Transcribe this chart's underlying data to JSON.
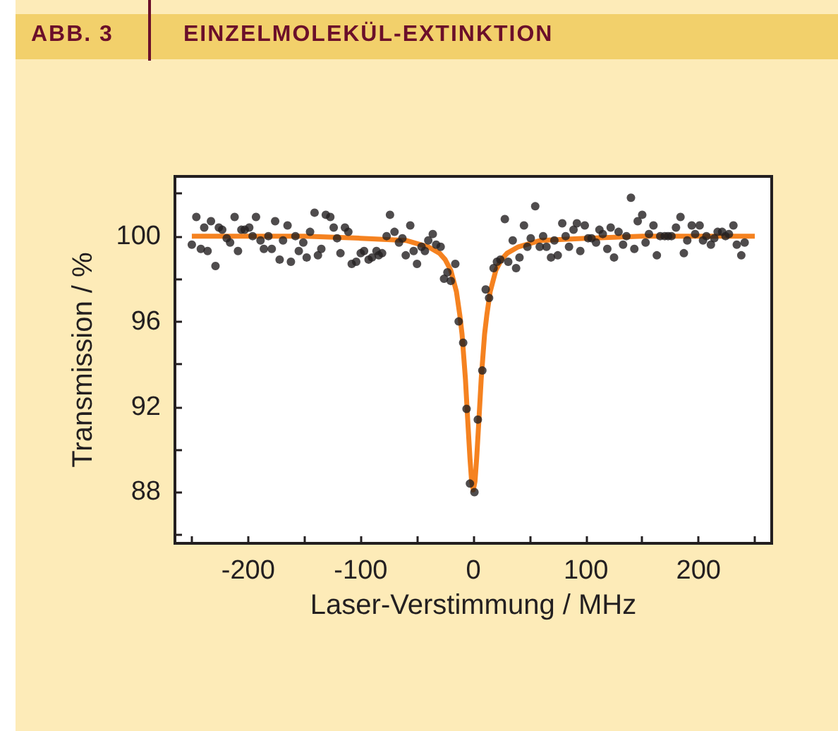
{
  "chart_data": {
    "type": "scatter",
    "title": "ABB. 3",
    "subtitle": "EINZELMOLEKÜL-EXTINKTION",
    "xlabel": "Laser-Verstimmung / MHz",
    "ylabel": "Transmission / %",
    "xlim": [
      -265,
      265
    ],
    "xticks": [
      {
        "value": -250,
        "label": null
      },
      -200,
      {
        "value": -150,
        "label": null
      },
      -100,
      {
        "value": -50,
        "label": null
      },
      0,
      {
        "value": 50,
        "label": null
      },
      100,
      {
        "value": 150,
        "label": null
      },
      200,
      {
        "value": 250,
        "label": null
      }
    ],
    "ylim": [
      85.6,
      102.8
    ],
    "yticks": [
      {
        "value": 86,
        "label": null
      },
      88,
      {
        "value": 90,
        "label": null
      },
      92,
      {
        "value": 94,
        "label": null
      },
      96,
      {
        "value": 98,
        "label": null
      },
      100,
      {
        "value": 102,
        "label": null
      }
    ],
    "grid": false,
    "series": [
      {
        "marker": "circle",
        "color": "#231f20",
        "x": [
          -250,
          -246,
          -242,
          -239,
          -236,
          -233,
          -229,
          -226,
          -223,
          -219,
          -216,
          -212,
          -209,
          -206,
          -203,
          -199,
          -196,
          -193,
          -189,
          -186,
          -182,
          -179,
          -176,
          -172,
          -169,
          -165,
          -162,
          -158,
          -155,
          -151,
          -148,
          -145,
          -141,
          -138,
          -135,
          -131,
          -127,
          -124,
          -121,
          -118,
          -114,
          -111,
          -108,
          -104,
          -100,
          -97,
          -93,
          -90,
          -86,
          -84,
          -81,
          -77,
          -74,
          -70,
          -66,
          -63,
          -60,
          -56,
          -53,
          -50,
          -46,
          -43,
          -40,
          -36,
          -33,
          -29,
          -26,
          -23,
          -20,
          -16,
          -13,
          -9,
          -6,
          -3,
          1,
          4,
          8,
          11,
          14,
          18,
          21,
          24,
          28,
          31,
          35,
          38,
          41,
          45,
          48,
          51,
          55,
          59,
          62,
          65,
          69,
          72,
          75,
          79,
          82,
          85,
          89,
          92,
          95,
          99,
          102,
          105,
          109,
          112,
          115,
          119,
          122,
          125,
          129,
          133,
          136,
          140,
          143,
          146,
          150,
          153,
          156,
          160,
          163,
          166,
          170,
          173,
          176,
          180,
          184,
          187,
          190,
          194,
          197,
          201,
          204,
          207,
          211,
          214,
          217,
          221,
          224,
          227,
          231,
          234,
          238,
          241
        ],
        "values": [
          99.6,
          100.9,
          99.4,
          100.4,
          99.3,
          100.7,
          98.6,
          100.4,
          100.3,
          99.9,
          99.7,
          100.9,
          99.3,
          100.3,
          100.3,
          100.4,
          100.0,
          100.9,
          99.8,
          99.4,
          100.0,
          99.4,
          100.7,
          98.9,
          99.8,
          100.5,
          98.8,
          100.0,
          99.3,
          99.7,
          99.0,
          100.2,
          101.1,
          99.1,
          99.4,
          101.0,
          100.9,
          100.4,
          99.9,
          99.2,
          100.4,
          100.2,
          98.7,
          98.8,
          99.2,
          99.3,
          98.9,
          99.0,
          99.3,
          99.1,
          99.2,
          100.0,
          101.0,
          100.2,
          99.7,
          99.9,
          99.1,
          100.5,
          99.3,
          98.7,
          99.5,
          99.3,
          99.8,
          100.1,
          99.6,
          99.5,
          98.0,
          98.3,
          97.9,
          98.7,
          96.0,
          95.0,
          91.9,
          88.4,
          88.0,
          91.4,
          93.7,
          97.5,
          97.1,
          98.5,
          98.8,
          98.9,
          100.8,
          98.8,
          99.8,
          98.5,
          99.0,
          100.5,
          99.5,
          99.9,
          101.4,
          99.5,
          100.0,
          99.5,
          99.0,
          99.8,
          99.1,
          100.6,
          100.0,
          99.5,
          100.3,
          100.6,
          99.3,
          100.5,
          99.9,
          99.9,
          99.7,
          100.3,
          100.1,
          99.4,
          100.4,
          99.0,
          100.2,
          99.6,
          100.0,
          101.8,
          99.4,
          100.7,
          101.0,
          99.7,
          100.1,
          100.5,
          99.1,
          100.0,
          100.0,
          100.0,
          100.0,
          100.4,
          100.9,
          99.2,
          99.8,
          100.5,
          100.1,
          100.5,
          99.8,
          100.0,
          99.6,
          99.9,
          100.2,
          100.2,
          100.0,
          100.1,
          100.5,
          99.6,
          99.1,
          99.7
        ]
      },
      {
        "type": "line",
        "marker": "none",
        "color": "#f58220",
        "x": [
          -250,
          -150,
          -100,
          -60,
          -40,
          -30,
          -25,
          -20,
          -15,
          -12,
          -10,
          -7,
          -5,
          -3,
          -1.5,
          0,
          1.5,
          3,
          5,
          7,
          10,
          12,
          15,
          20,
          25,
          30,
          40,
          60,
          100,
          150,
          250
        ],
        "values": [
          100.0,
          100.0,
          99.9,
          99.8,
          99.5,
          99.2,
          98.9,
          98.4,
          97.4,
          96.3,
          95.4,
          93.3,
          91.4,
          89.6,
          88.5,
          88.1,
          88.5,
          89.6,
          91.4,
          93.3,
          95.4,
          96.3,
          97.4,
          98.4,
          98.9,
          99.2,
          99.5,
          99.8,
          99.9,
          100.0,
          100.0
        ]
      }
    ]
  }
}
